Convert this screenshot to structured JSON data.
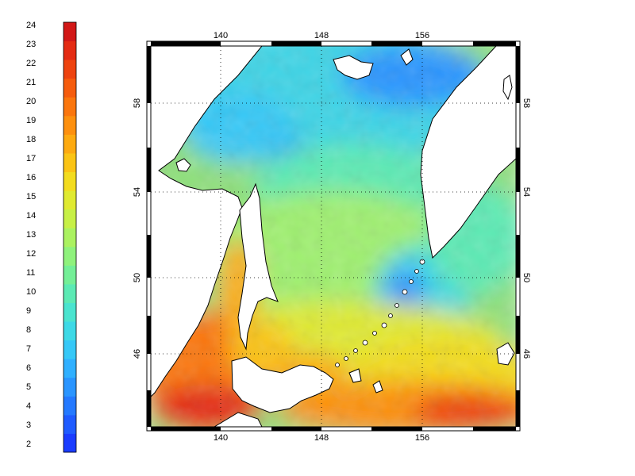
{
  "colorbar": {
    "min": 2,
    "max": 24,
    "labels": [
      "24",
      "23",
      "22",
      "21",
      "20",
      "19",
      "18",
      "17",
      "16",
      "15",
      "14",
      "13",
      "12",
      "11",
      "10",
      "9",
      "8",
      "7",
      "6",
      "5",
      "4",
      "3",
      "2"
    ],
    "colors": [
      "#1a3cff",
      "#1f5bff",
      "#2479ff",
      "#2a95ff",
      "#30b0ff",
      "#36c8f7",
      "#3dd9e6",
      "#4ae4cf",
      "#5ceab4",
      "#74ef97",
      "#8ff27c",
      "#abf260",
      "#c7f046",
      "#e0ea30",
      "#f3dc1e",
      "#fbc414",
      "#fdaa10",
      "#fd900e",
      "#fb760d",
      "#f65c0d",
      "#ee430f",
      "#e42b13",
      "#d21817"
    ]
  },
  "map": {
    "top_lon_labels": [
      "140",
      "148",
      "156"
    ],
    "bottom_lon_labels": [
      "140",
      "148",
      "156"
    ],
    "left_lat_labels": [
      "58",
      "54",
      "50",
      "46"
    ],
    "right_lat_labels": [
      "58",
      "54",
      "50",
      "46"
    ]
  }
}
